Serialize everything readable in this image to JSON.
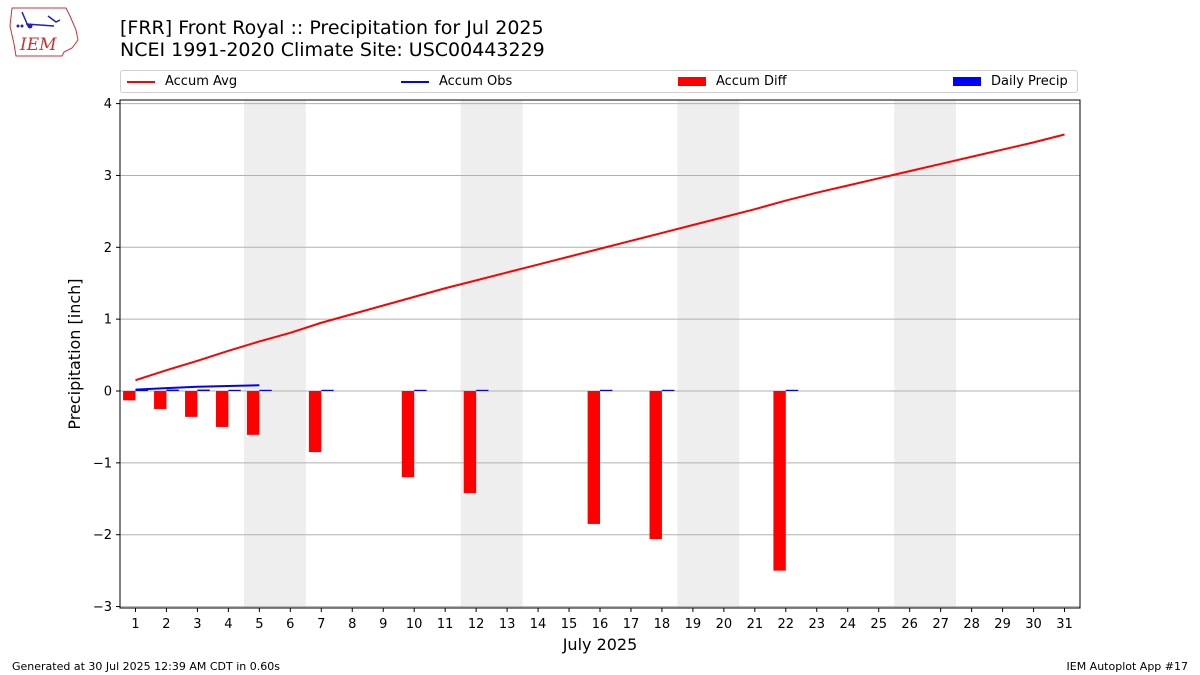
{
  "header": {
    "title_line1": "[FRR] Front Royal :: Precipitation for Jul 2025",
    "title_line2": "NCEI 1991-2020 Climate Site: USC00443229"
  },
  "logo": {
    "text": "IEM"
  },
  "legend": {
    "items": [
      {
        "label": "Accum Avg",
        "kind": "line",
        "color": "#ff0000"
      },
      {
        "label": "Accum Obs",
        "kind": "line",
        "color": "#0000ff"
      },
      {
        "label": "Accum Diff",
        "kind": "bar",
        "color": "#ff0000"
      },
      {
        "label": "Daily Precip",
        "kind": "bar",
        "color": "#0000ff"
      }
    ]
  },
  "footer": {
    "left": "Generated at 30 Jul 2025 12:39 AM CDT in 0.60s",
    "right": "IEM Autoplot App #17"
  },
  "chart_data": {
    "type": "bar",
    "xlabel": "July 2025",
    "ylabel": "Precipitation [inch]",
    "xlim": [
      0.5,
      31.5
    ],
    "ylim": [
      -3.02,
      4.05
    ],
    "yticks": [
      -3,
      -2,
      -1,
      0,
      1,
      2,
      3,
      4
    ],
    "ytick_labels": [
      "−3",
      "−2",
      "−1",
      "0",
      "1",
      "2",
      "3",
      "4"
    ],
    "x": [
      1,
      2,
      3,
      4,
      5,
      6,
      7,
      8,
      9,
      10,
      11,
      12,
      13,
      14,
      15,
      16,
      17,
      18,
      19,
      20,
      21,
      22,
      23,
      24,
      25,
      26,
      27,
      28,
      29,
      30,
      31
    ],
    "grid": "y",
    "weekend_shading": [
      [
        4.5,
        6.5
      ],
      [
        11.5,
        13.5
      ],
      [
        18.5,
        20.5
      ],
      [
        25.5,
        27.5
      ]
    ],
    "series": [
      {
        "name": "Accum Avg",
        "type": "line",
        "color": "#ff0000",
        "x": [
          1,
          2,
          3,
          4,
          5,
          6,
          7,
          8,
          9,
          10,
          11,
          12,
          13,
          14,
          15,
          16,
          17,
          18,
          19,
          20,
          21,
          22,
          23,
          24,
          25,
          26,
          27,
          28,
          29,
          30,
          31
        ],
        "values": [
          0.15,
          0.29,
          0.42,
          0.56,
          0.69,
          0.81,
          0.95,
          1.07,
          1.19,
          1.31,
          1.43,
          1.54,
          1.65,
          1.76,
          1.87,
          1.98,
          2.09,
          2.2,
          2.31,
          2.42,
          2.53,
          2.65,
          2.76,
          2.86,
          2.96,
          3.06,
          3.16,
          3.26,
          3.36,
          3.46,
          3.57
        ]
      },
      {
        "name": "Accum Obs",
        "type": "line",
        "color": "#0000ff",
        "x": [
          1,
          2,
          3,
          4,
          5
        ],
        "values": [
          0.02,
          0.04,
          0.06,
          0.07,
          0.08
        ]
      },
      {
        "name": "Accum Diff",
        "type": "bar",
        "color": "#ff0000",
        "x": [
          1,
          2,
          3,
          4,
          5,
          7,
          10,
          12,
          16,
          18,
          22
        ],
        "values": [
          -0.13,
          -0.25,
          -0.36,
          -0.5,
          -0.61,
          -0.85,
          -1.2,
          -1.42,
          -1.85,
          -2.06,
          -2.5
        ]
      },
      {
        "name": "Daily Precip",
        "type": "bar",
        "color": "#0000ff",
        "x": [
          1,
          2,
          3,
          4,
          5,
          7,
          10,
          12,
          16,
          18,
          22
        ],
        "values": [
          0.02,
          0.02,
          0.02,
          0.01,
          0.01,
          0.0,
          0.0,
          0.0,
          0.0,
          0.0,
          0.0
        ]
      }
    ]
  }
}
